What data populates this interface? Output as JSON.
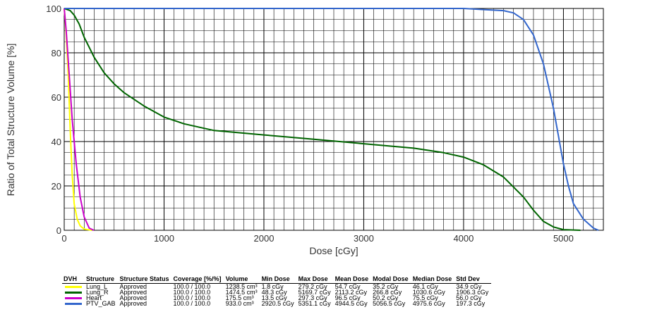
{
  "chart_data": {
    "type": "line",
    "title": "",
    "xlabel": "Dose [cGy]",
    "ylabel": "Ratio of Total Structure Volume [%]",
    "xlim": [
      0,
      5400
    ],
    "ylim": [
      0,
      100
    ],
    "x_ticks": [
      0,
      1000,
      2000,
      3000,
      4000,
      5000
    ],
    "y_ticks": [
      0,
      20,
      40,
      60,
      80,
      100
    ],
    "grid": true,
    "series": [
      {
        "name": "Lung_L",
        "color": "#ffff00",
        "points": [
          [
            0,
            100
          ],
          [
            10,
            95
          ],
          [
            20,
            88
          ],
          [
            40,
            70
          ],
          [
            60,
            45
          ],
          [
            80,
            25
          ],
          [
            100,
            12
          ],
          [
            130,
            5
          ],
          [
            160,
            2
          ],
          [
            200,
            0.5
          ],
          [
            279,
            0
          ]
        ]
      },
      {
        "name": "Lung_R",
        "color": "#006400",
        "points": [
          [
            0,
            100
          ],
          [
            60,
            99
          ],
          [
            100,
            97
          ],
          [
            150,
            93
          ],
          [
            200,
            87
          ],
          [
            300,
            78
          ],
          [
            400,
            71
          ],
          [
            500,
            66
          ],
          [
            600,
            62
          ],
          [
            800,
            56
          ],
          [
            1000,
            51
          ],
          [
            1200,
            48
          ],
          [
            1500,
            45
          ],
          [
            2000,
            43
          ],
          [
            2500,
            41
          ],
          [
            3000,
            39
          ],
          [
            3500,
            37
          ],
          [
            3800,
            35
          ],
          [
            4000,
            33
          ],
          [
            4200,
            29.5
          ],
          [
            4400,
            24
          ],
          [
            4600,
            15
          ],
          [
            4700,
            9
          ],
          [
            4800,
            4
          ],
          [
            4900,
            1.5
          ],
          [
            5000,
            0.3
          ],
          [
            5170,
            0
          ]
        ]
      },
      {
        "name": "Heart",
        "color": "#cc00cc",
        "points": [
          [
            0,
            100
          ],
          [
            20,
            90
          ],
          [
            50,
            70
          ],
          [
            80,
            50
          ],
          [
            120,
            30
          ],
          [
            160,
            15
          ],
          [
            200,
            6
          ],
          [
            250,
            1
          ],
          [
            297,
            0
          ]
        ]
      },
      {
        "name": "PTV_GAB",
        "color": "#3366cc",
        "points": [
          [
            0,
            100
          ],
          [
            3500,
            100
          ],
          [
            4000,
            100
          ],
          [
            4200,
            99.5
          ],
          [
            4400,
            99
          ],
          [
            4500,
            98
          ],
          [
            4600,
            95
          ],
          [
            4700,
            88
          ],
          [
            4800,
            75
          ],
          [
            4900,
            55
          ],
          [
            5000,
            30
          ],
          [
            5050,
            20
          ],
          [
            5100,
            12
          ],
          [
            5200,
            5
          ],
          [
            5300,
            1
          ],
          [
            5351,
            0
          ]
        ]
      }
    ]
  },
  "table": {
    "headers": [
      "DVH",
      "Structure",
      "Structure Status",
      "Coverage [%/%]",
      "Volume",
      "Min Dose",
      "Max Dose",
      "Mean Dose",
      "Modal Dose",
      "Median Dose",
      "Std Dev"
    ],
    "rows": [
      {
        "color": "#ffff00",
        "cells": [
          "Lung_L",
          "Approved",
          "100.0 / 100.0",
          "1238.5 cm³",
          "1.8 cGy",
          "279.2 cGy",
          "54.7 cGy",
          "35.2 cGy",
          "46.1 cGy",
          "34.9 cGy"
        ]
      },
      {
        "color": "#006400",
        "cells": [
          "Lung_R",
          "Approved",
          "100.0 / 100.0",
          "1474.5 cm³",
          "48.3 cGy",
          "5169.7 cGy",
          "2113.2 cGy",
          "266.8 cGy",
          "1030.6 cGy",
          "1906.3 cGy"
        ]
      },
      {
        "color": "#cc00cc",
        "cells": [
          "Heart",
          "Approved",
          "100.0 / 100.0",
          "175.5 cm³",
          "13.5 cGy",
          "297.3 cGy",
          "96.5 cGy",
          "50.2 cGy",
          "75.5 cGy",
          "56.0 cGy"
        ]
      },
      {
        "color": "#3366cc",
        "cells": [
          "PTV_GAB",
          "Approved",
          "100.0 / 100.0",
          "933.0 cm³",
          "2920.5 cGy",
          "5351.1 cGy",
          "4944.5 cGy",
          "5056.5 cGy",
          "4975.6 cGy",
          "197.3 cGy"
        ]
      }
    ]
  }
}
